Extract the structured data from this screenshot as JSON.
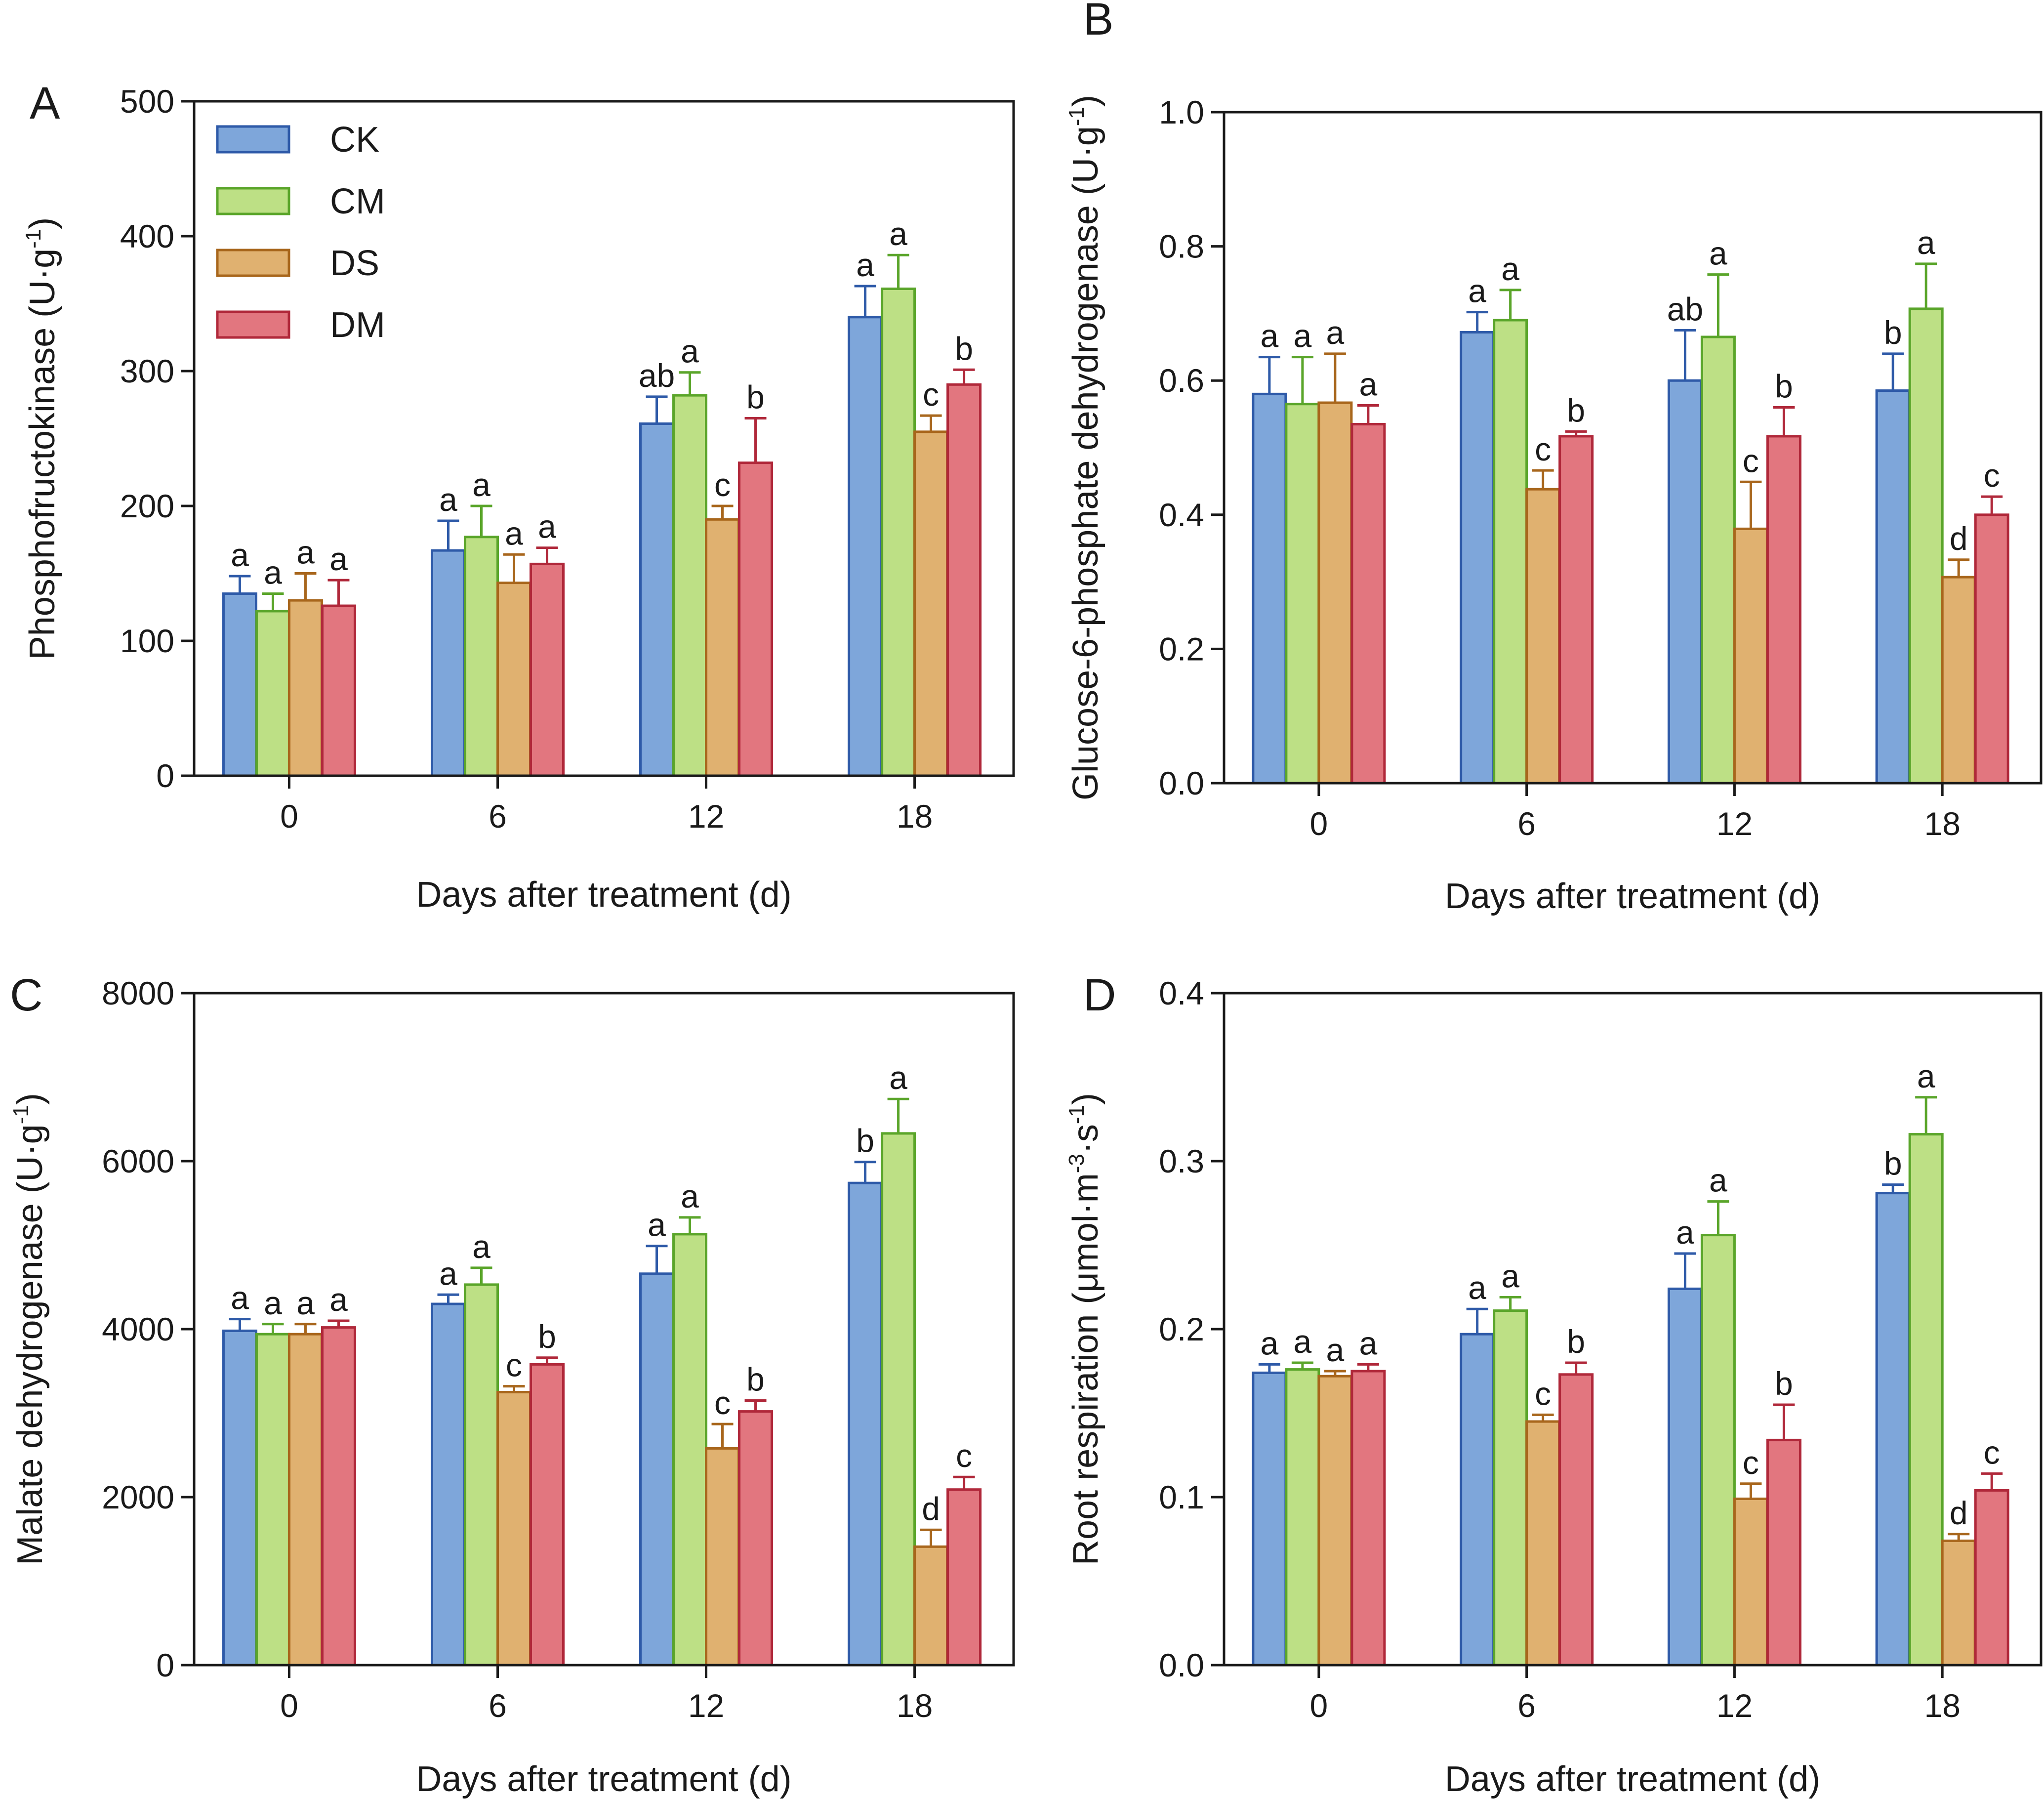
{
  "chart_data": [
    {
      "type": "bar",
      "panel_label": "A",
      "xlabel": "Days after treatment (d)",
      "ylabel": "Phosphofructokinase (U·g⁻¹)",
      "ylabel_parts": {
        "main": "Phosphofructokinase (U·g",
        "sup": "-1",
        "tail": ")"
      },
      "ylim": [
        0,
        500
      ],
      "yticks": [
        "0",
        "100",
        "200",
        "300",
        "400",
        "500"
      ],
      "ytick_values": [
        0,
        100,
        200,
        300,
        400,
        500
      ],
      "categories": [
        "0",
        "6",
        "12",
        "18"
      ],
      "legend": true,
      "legend_position": "top-left",
      "series": [
        {
          "name": "CK",
          "values": [
            135,
            167,
            261,
            340
          ],
          "errors": [
            13,
            22,
            20,
            23
          ],
          "letters": [
            "a",
            "a",
            "ab",
            "a"
          ]
        },
        {
          "name": "CM",
          "values": [
            122,
            177,
            282,
            361
          ],
          "errors": [
            13,
            23,
            17,
            25
          ],
          "letters": [
            "a",
            "a",
            "a",
            "a"
          ]
        },
        {
          "name": "DS",
          "values": [
            130,
            143,
            190,
            255
          ],
          "errors": [
            20,
            21,
            10,
            12
          ],
          "letters": [
            "a",
            "a",
            "c",
            "c"
          ]
        },
        {
          "name": "DM",
          "values": [
            126,
            157,
            232,
            290
          ],
          "errors": [
            19,
            12,
            33,
            11
          ],
          "letters": [
            "a",
            "a",
            "b",
            "b"
          ]
        }
      ]
    },
    {
      "type": "bar",
      "panel_label": "B",
      "xlabel": "Days after treatment (d)",
      "ylabel": "Glucose-6-phosphate dehydrogenase (U·g⁻¹)",
      "ylabel_parts": {
        "main": "Glucose-6-phosphate dehydrogenase (U·g",
        "sup": "-1",
        "tail": ")"
      },
      "ylim": [
        0,
        1.0
      ],
      "yticks": [
        "0.0",
        "0.2",
        "0.4",
        "0.6",
        "0.8",
        "1.0"
      ],
      "ytick_values": [
        0,
        0.2,
        0.4,
        0.6,
        0.8,
        1.0
      ],
      "categories": [
        "0",
        "6",
        "12",
        "18"
      ],
      "legend": false,
      "series": [
        {
          "name": "CK",
          "values": [
            0.58,
            0.672,
            0.6,
            0.585
          ],
          "errors": [
            0.055,
            0.03,
            0.075,
            0.055
          ],
          "letters": [
            "a",
            "a",
            "ab",
            "b"
          ]
        },
        {
          "name": "CM",
          "values": [
            0.565,
            0.69,
            0.665,
            0.707
          ],
          "errors": [
            0.07,
            0.045,
            0.093,
            0.067
          ],
          "letters": [
            "a",
            "a",
            "a",
            "a"
          ]
        },
        {
          "name": "DS",
          "values": [
            0.567,
            0.438,
            0.379,
            0.307
          ],
          "errors": [
            0.073,
            0.028,
            0.07,
            0.026
          ],
          "letters": [
            "a",
            "c",
            "c",
            "d"
          ]
        },
        {
          "name": "DM",
          "values": [
            0.535,
            0.517,
            0.517,
            0.4
          ],
          "errors": [
            0.028,
            0.007,
            0.043,
            0.027
          ],
          "letters": [
            "a",
            "b",
            "b",
            "c"
          ]
        }
      ]
    },
    {
      "type": "bar",
      "panel_label": "C",
      "xlabel": "Days after treatment (d)",
      "ylabel": "Malate dehydrogenase (U·g⁻¹)",
      "ylabel_parts": {
        "main": "Malate dehydrogenase (U·g",
        "sup": "-1",
        "tail": ")"
      },
      "ylim": [
        0,
        8000
      ],
      "yticks": [
        "0",
        "2000",
        "4000",
        "6000",
        "8000"
      ],
      "ytick_values": [
        0,
        2000,
        4000,
        6000,
        8000
      ],
      "categories": [
        "0",
        "6",
        "12",
        "18"
      ],
      "legend": false,
      "series": [
        {
          "name": "CK",
          "values": [
            3980,
            4300,
            4660,
            5740
          ],
          "errors": [
            140,
            110,
            330,
            250
          ],
          "letters": [
            "a",
            "a",
            "a",
            "b"
          ]
        },
        {
          "name": "CM",
          "values": [
            3940,
            4530,
            5130,
            6330
          ],
          "errors": [
            120,
            200,
            200,
            410
          ],
          "letters": [
            "a",
            "a",
            "a",
            "a"
          ]
        },
        {
          "name": "DS",
          "values": [
            3940,
            3250,
            2580,
            1410
          ],
          "errors": [
            120,
            70,
            290,
            200
          ],
          "letters": [
            "a",
            "c",
            "c",
            "d"
          ]
        },
        {
          "name": "DM",
          "values": [
            4020,
            3580,
            3020,
            2090
          ],
          "errors": [
            80,
            80,
            130,
            150
          ],
          "letters": [
            "a",
            "b",
            "b",
            "c"
          ]
        }
      ]
    },
    {
      "type": "bar",
      "panel_label": "D",
      "xlabel": "Days after treatment (d)",
      "ylabel": "Root respiration (μmol·m⁻³·s⁻¹)",
      "ylabel_parts": {
        "main": "Root respiration (μmol·m",
        "sup": "-3",
        "mid": "·s",
        "sup2": "-1",
        "tail": ")"
      },
      "ylim": [
        0,
        0.4
      ],
      "yticks": [
        "0.0",
        "0.1",
        "0.2",
        "0.3",
        "0.4"
      ],
      "ytick_values": [
        0,
        0.1,
        0.2,
        0.3,
        0.4
      ],
      "categories": [
        "0",
        "6",
        "12",
        "18"
      ],
      "legend": false,
      "series": [
        {
          "name": "CK",
          "values": [
            0.174,
            0.197,
            0.224,
            0.281
          ],
          "errors": [
            0.005,
            0.015,
            0.021,
            0.005
          ],
          "letters": [
            "a",
            "a",
            "a",
            "b"
          ]
        },
        {
          "name": "CM",
          "values": [
            0.176,
            0.211,
            0.256,
            0.316
          ],
          "errors": [
            0.004,
            0.008,
            0.02,
            0.022
          ],
          "letters": [
            "a",
            "a",
            "a",
            "a"
          ]
        },
        {
          "name": "DS",
          "values": [
            0.172,
            0.145,
            0.099,
            0.074
          ],
          "errors": [
            0.003,
            0.004,
            0.009,
            0.004
          ],
          "letters": [
            "a",
            "c",
            "c",
            "d"
          ]
        },
        {
          "name": "DM",
          "values": [
            0.175,
            0.173,
            0.134,
            0.104
          ],
          "errors": [
            0.004,
            0.007,
            0.021,
            0.01
          ],
          "letters": [
            "a",
            "b",
            "b",
            "c"
          ]
        }
      ]
    }
  ],
  "series_colors": {
    "CK": {
      "fill": "#7ea6da",
      "stroke": "#2e5aa8"
    },
    "CM": {
      "fill": "#bde085",
      "stroke": "#5aa52a"
    },
    "DS": {
      "fill": "#e0b170",
      "stroke": "#a8661c"
    },
    "DM": {
      "fill": "#e2767f",
      "stroke": "#b0283a"
    }
  }
}
